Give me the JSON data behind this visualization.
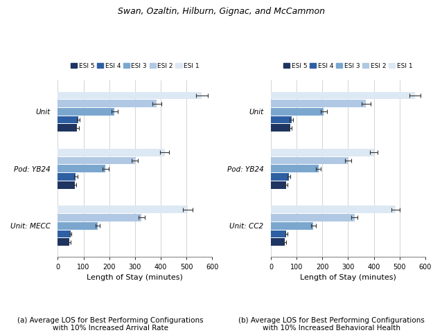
{
  "title": "Swan, Ozaltin, Hilburn, Gignac, and McCammon",
  "categories_a": [
    "Unit",
    "Pod: YB24",
    "Unit: MECC"
  ],
  "categories_b": [
    "Unit",
    "Pod: YB24",
    "Unit: CC2"
  ],
  "esi_labels": [
    "ESI 5",
    "ESI 4",
    "ESI 3",
    "ESI 2",
    "ESI 1"
  ],
  "esi_colors": [
    "#1e3461",
    "#2e5fa3",
    "#7ba7cf",
    "#b0c8e4",
    "#dce8f3"
  ],
  "subplot_a": {
    "Unit": {
      "values": [
        75,
        80,
        220,
        385,
        560
      ],
      "errors": [
        6,
        6,
        12,
        18,
        22
      ]
    },
    "Pod: YB24": {
      "values": [
        65,
        70,
        185,
        300,
        415
      ],
      "errors": [
        6,
        6,
        12,
        12,
        18
      ]
    },
    "Unit: MECC": {
      "values": [
        45,
        50,
        155,
        325,
        505
      ],
      "errors": [
        4,
        4,
        8,
        12,
        18
      ]
    }
  },
  "subplot_b": {
    "Unit": {
      "values": [
        75,
        80,
        205,
        370,
        560
      ],
      "errors": [
        6,
        6,
        12,
        18,
        22
      ]
    },
    "Pod: YB24": {
      "values": [
        60,
        70,
        185,
        300,
        400
      ],
      "errors": [
        6,
        6,
        10,
        12,
        16
      ]
    },
    "Unit: CC2": {
      "values": [
        55,
        60,
        165,
        325,
        485
      ],
      "errors": [
        4,
        4,
        10,
        12,
        16
      ]
    }
  },
  "xlabel": "Length of Stay (minutes)",
  "xlim": [
    0,
    600
  ],
  "xticks": [
    0,
    100,
    200,
    300,
    400,
    500,
    600
  ],
  "caption_a": "(a) Average LOS for Best Performing Configurations\nwith 10% Increased Arrival Rate",
  "caption_b": "(b) Average LOS for Best Performing Configurations\nwith 10% Increased Behavioral Health"
}
